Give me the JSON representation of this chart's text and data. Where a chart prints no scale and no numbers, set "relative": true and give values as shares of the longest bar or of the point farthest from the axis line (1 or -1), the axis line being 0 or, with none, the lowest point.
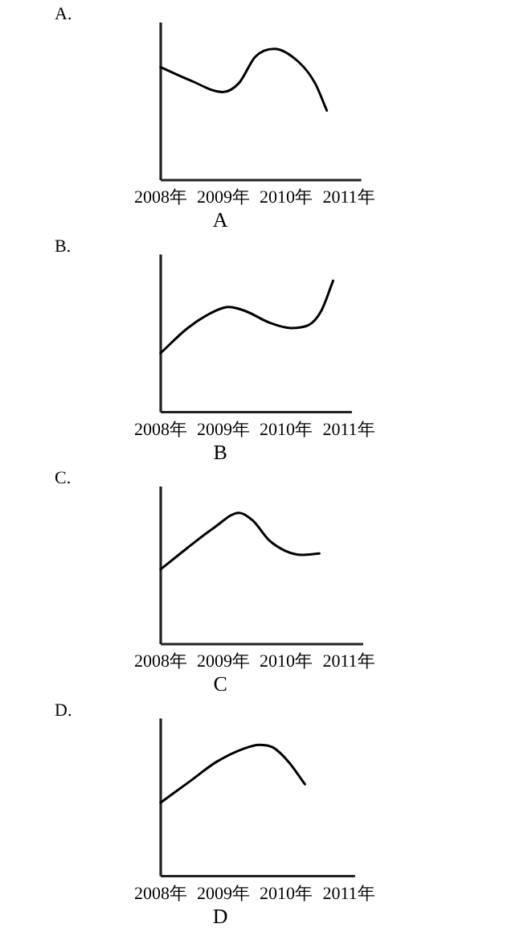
{
  "chart_data": [
    {
      "type": "line",
      "title": "A.",
      "xlabel": "A",
      "relative": true,
      "xlim": [
        2008,
        2011.2
      ],
      "xticks": [
        {
          "value": 2008,
          "label": "2008年"
        },
        {
          "value": 2009,
          "label": "2009年"
        },
        {
          "value": 2010,
          "label": "2010年"
        },
        {
          "value": 2011,
          "label": "2011年"
        }
      ],
      "series": [
        {
          "color": "#000000",
          "x": [
            2008,
            2008.47,
            2008.99,
            2009.25,
            2009.51,
            2009.81,
            2010.2,
            2010.46,
            2010.65
          ],
          "values": [
            0.86,
            0.76,
            0.67,
            0.74,
            0.94,
            1,
            0.9,
            0.74,
            0.53
          ]
        }
      ]
    },
    {
      "type": "line",
      "title": "B.",
      "xlabel": "B",
      "relative": true,
      "xlim": [
        2008,
        2011.05
      ],
      "xticks": [
        {
          "value": 2008,
          "label": "2008年"
        },
        {
          "value": 2009,
          "label": "2009年"
        },
        {
          "value": 2010,
          "label": "2010年"
        },
        {
          "value": 2011,
          "label": "2011年"
        }
      ],
      "series": [
        {
          "color": "#000000",
          "x": [
            2008,
            2008.43,
            2008.87,
            2009.08,
            2009.35,
            2009.74,
            2010.08,
            2010.35,
            2010.56,
            2010.75
          ],
          "values": [
            0.45,
            0.64,
            0.77,
            0.8,
            0.77,
            0.68,
            0.64,
            0.66,
            0.77,
            1
          ]
        }
      ]
    },
    {
      "type": "line",
      "title": "C.",
      "xlabel": "C",
      "relative": true,
      "xlim": [
        2008,
        2011.23
      ],
      "xticks": [
        {
          "value": 2008,
          "label": "2008年"
        },
        {
          "value": 2009,
          "label": "2009年"
        },
        {
          "value": 2010,
          "label": "2010年"
        },
        {
          "value": 2011,
          "label": "2011年"
        }
      ],
      "series": [
        {
          "color": "#000000",
          "x": [
            2008,
            2008.42,
            2008.86,
            2009.25,
            2009.47,
            2009.73,
            2009.99,
            2010.25,
            2010.53
          ],
          "values": [
            0.57,
            0.73,
            0.89,
            1,
            0.94,
            0.79,
            0.71,
            0.68,
            0.69
          ]
        }
      ]
    },
    {
      "type": "line",
      "title": "D.",
      "xlabel": "D",
      "relative": true,
      "xlim": [
        2008,
        2011.1
      ],
      "xticks": [
        {
          "value": 2008,
          "label": "2008年"
        },
        {
          "value": 2009,
          "label": "2009年"
        },
        {
          "value": 2010,
          "label": "2010年"
        },
        {
          "value": 2011,
          "label": "2011年"
        }
      ],
      "series": [
        {
          "color": "#000000",
          "x": [
            2008,
            2008.46,
            2008.89,
            2009.32,
            2009.57,
            2009.79,
            2010.04,
            2010.3
          ],
          "values": [
            0.56,
            0.72,
            0.87,
            0.97,
            1,
            0.98,
            0.87,
            0.7
          ]
        }
      ]
    }
  ]
}
